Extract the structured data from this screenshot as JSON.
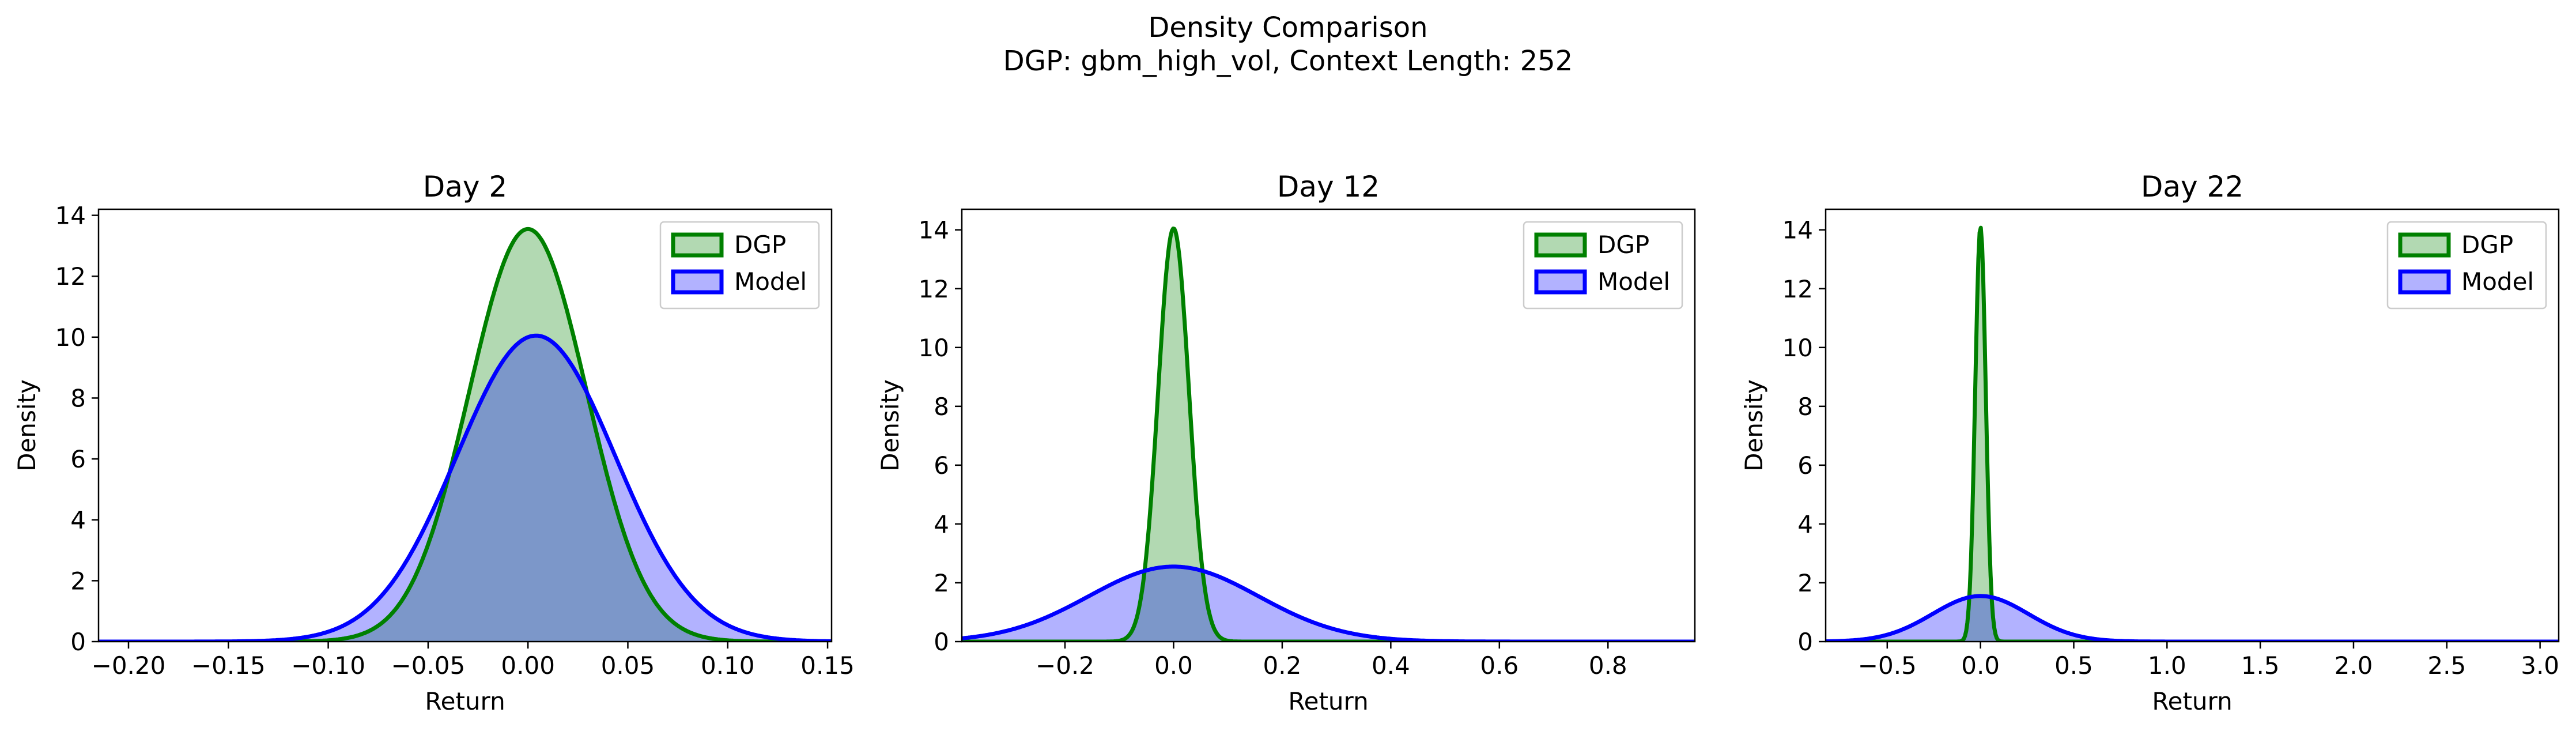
{
  "figure": {
    "title_line1": "Density Comparison",
    "title_line2": "DGP: gbm_high_vol, Context Length: 252"
  },
  "colors": {
    "dgp_line": "#008000",
    "dgp_fill": "#b1d9ad",
    "model_line": "#0000ff",
    "model_fill": "#b3b3f7"
  },
  "chart_data": [
    {
      "type": "area",
      "title": "Day 2",
      "xlabel": "Return",
      "ylabel": "Density",
      "xlim": [
        -0.215,
        0.152
      ],
      "ylim": [
        0,
        14.2
      ],
      "xticks": [
        -0.2,
        -0.15,
        -0.1,
        -0.05,
        0.0,
        0.05,
        0.1,
        0.15
      ],
      "xtick_labels": [
        "−0.20",
        "−0.15",
        "−0.10",
        "−0.05",
        "0.00",
        "0.05",
        "0.10",
        "0.15"
      ],
      "yticks": [
        0,
        2,
        4,
        6,
        8,
        10,
        12,
        14
      ],
      "ytick_labels": [
        "0",
        "2",
        "4",
        "6",
        "8",
        "10",
        "12",
        "14"
      ],
      "legend": {
        "position": "upper right",
        "entries": [
          "DGP",
          "Model"
        ]
      },
      "series": [
        {
          "name": "DGP",
          "distribution": "normal",
          "mean": 0.0,
          "peak_density": 13.55
        },
        {
          "name": "Model",
          "distribution": "normal",
          "mean": 0.004,
          "peak_density": 10.05
        }
      ]
    },
    {
      "type": "area",
      "title": "Day 12",
      "xlabel": "Return",
      "ylabel": "Density",
      "xlim": [
        -0.39,
        0.96
      ],
      "ylim": [
        0,
        14.7
      ],
      "xticks": [
        -0.2,
        0.0,
        0.2,
        0.4,
        0.6,
        0.8
      ],
      "xtick_labels": [
        "−0.2",
        "0.0",
        "0.2",
        "0.4",
        "0.6",
        "0.8"
      ],
      "yticks": [
        0,
        2,
        4,
        6,
        8,
        10,
        12,
        14
      ],
      "ytick_labels": [
        "0",
        "2",
        "4",
        "6",
        "8",
        "10",
        "12",
        "14"
      ],
      "legend": {
        "position": "upper right",
        "entries": [
          "DGP",
          "Model"
        ]
      },
      "series": [
        {
          "name": "DGP",
          "distribution": "normal",
          "mean": 0.0,
          "peak_density": 14.05
        },
        {
          "name": "Model",
          "distribution": "normal",
          "mean": 0.0,
          "peak_density": 2.55
        }
      ]
    },
    {
      "type": "area",
      "title": "Day 22",
      "xlabel": "Return",
      "ylabel": "Density",
      "xlim": [
        -0.83,
        3.1
      ],
      "ylim": [
        0,
        14.7
      ],
      "xticks": [
        -0.5,
        0.0,
        0.5,
        1.0,
        1.5,
        2.0,
        2.5,
        3.0
      ],
      "xtick_labels": [
        "−0.5",
        "0.0",
        "0.5",
        "1.0",
        "1.5",
        "2.0",
        "2.5",
        "3.0"
      ],
      "yticks": [
        0,
        2,
        4,
        6,
        8,
        10,
        12,
        14
      ],
      "ytick_labels": [
        "0",
        "2",
        "4",
        "6",
        "8",
        "10",
        "12",
        "14"
      ],
      "legend": {
        "position": "upper right",
        "entries": [
          "DGP",
          "Model"
        ]
      },
      "series": [
        {
          "name": "DGP",
          "distribution": "normal",
          "mean": 0.0,
          "peak_density": 14.1
        },
        {
          "name": "Model",
          "distribution": "normal",
          "mean": 0.0,
          "peak_density": 1.55
        }
      ]
    }
  ]
}
